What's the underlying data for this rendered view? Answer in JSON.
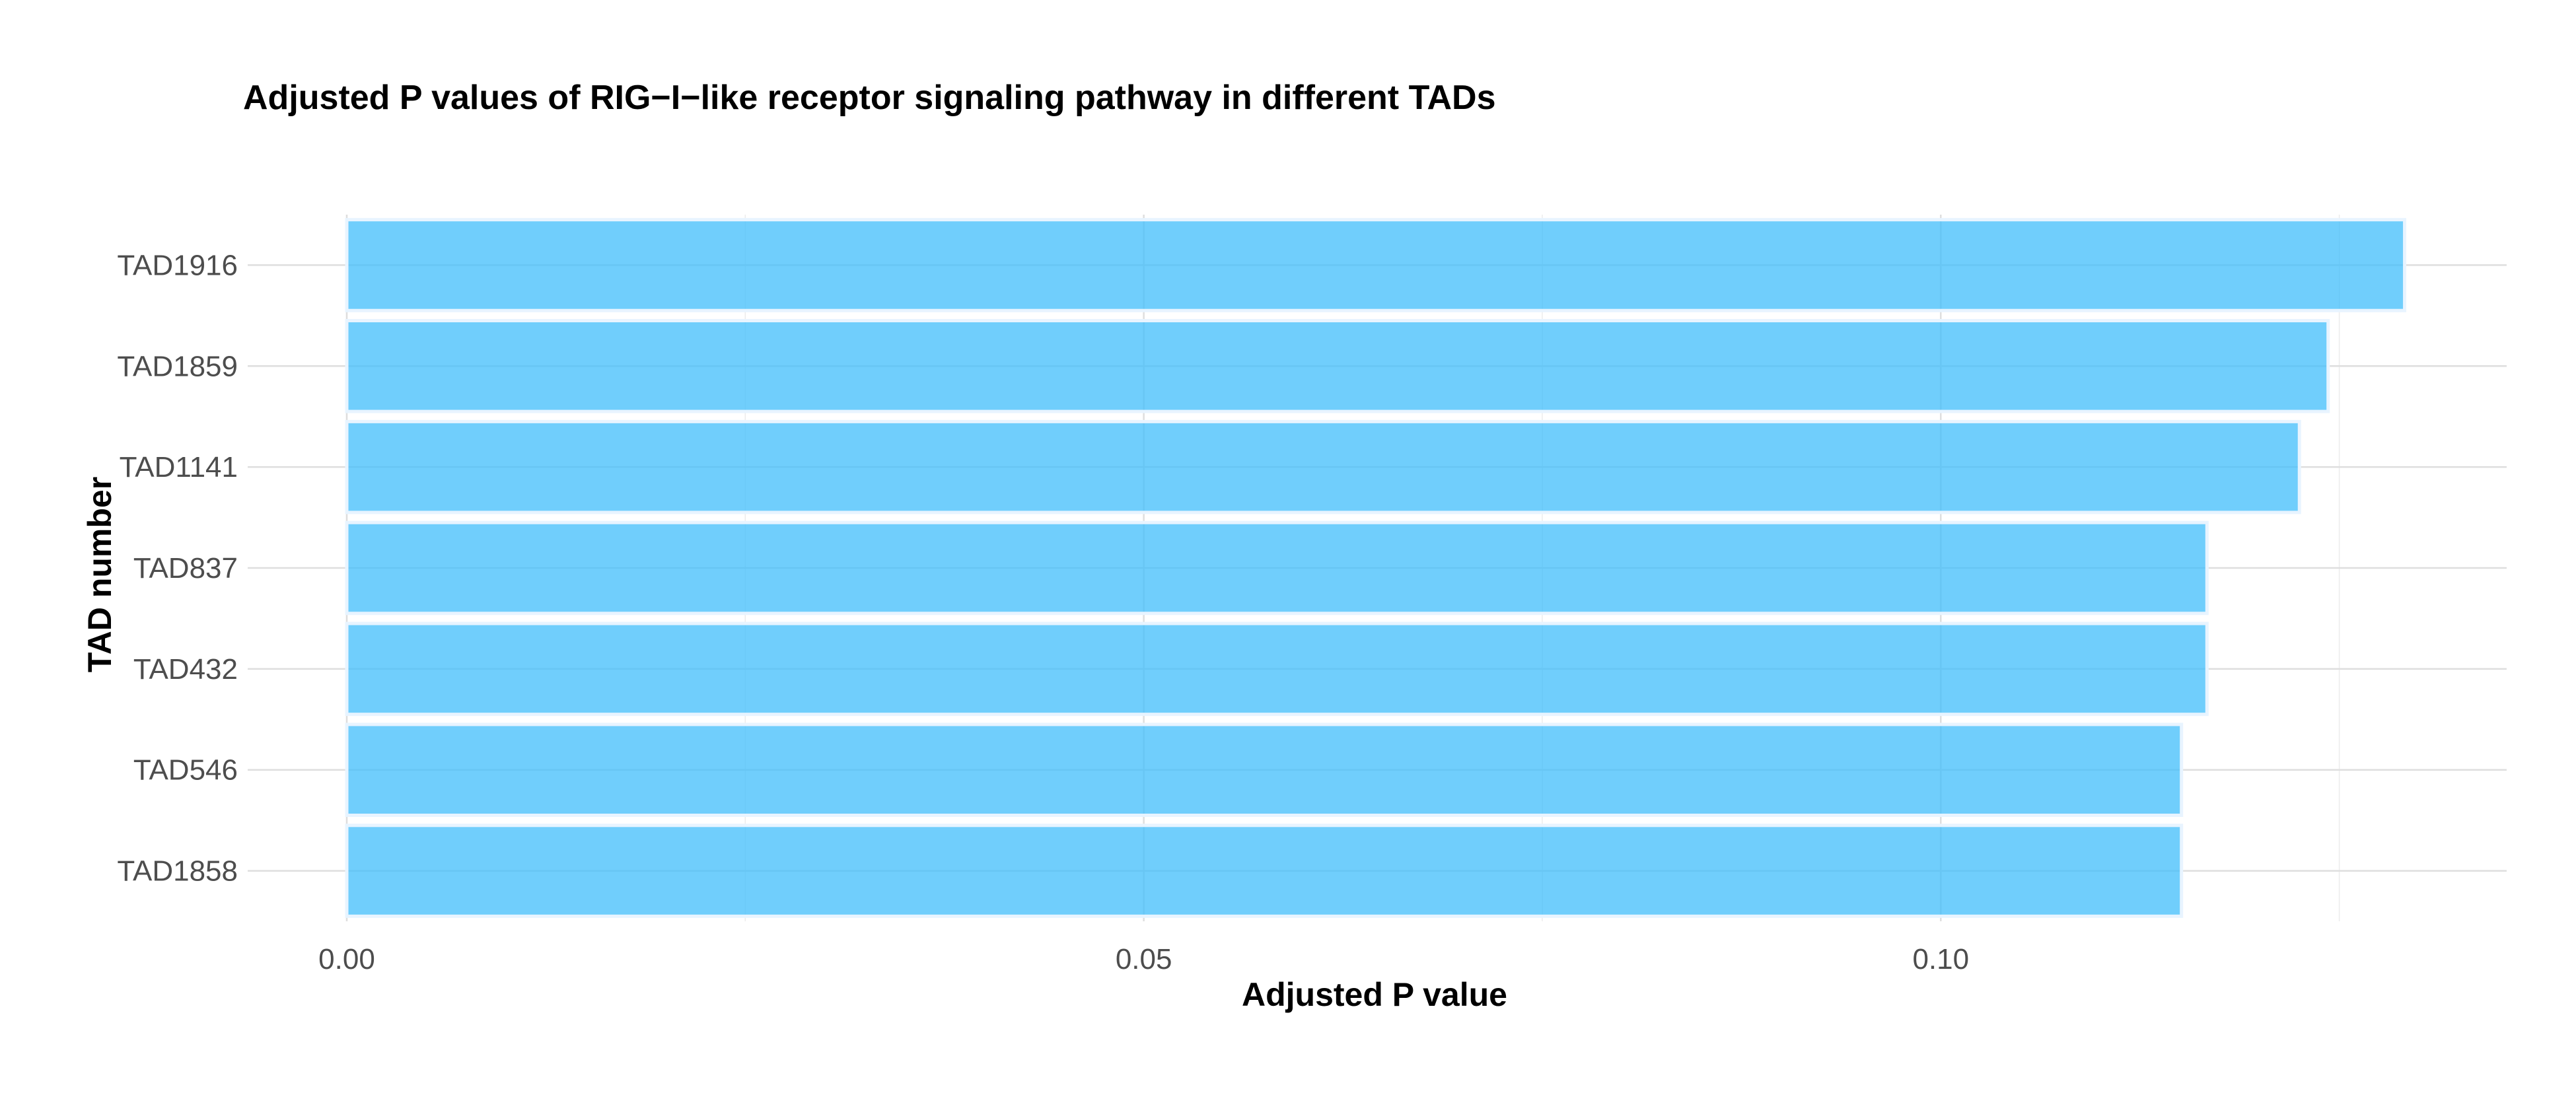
{
  "chart_data": {
    "type": "bar",
    "orientation": "horizontal",
    "title": "Adjusted P values of RIG−I−like receptor signaling pathway in different TADs",
    "xlabel": "Adjusted P value",
    "ylabel": "TAD number",
    "categories": [
      "TAD1916",
      "TAD1859",
      "TAD1141",
      "TAD837",
      "TAD432",
      "TAD546",
      "TAD1858"
    ],
    "values": [
      0.1291,
      0.1243,
      0.1225,
      0.1167,
      0.1167,
      0.1151,
      0.1151
    ],
    "xlim": [
      0,
      0.1355
    ],
    "x_ticks": [
      0.0,
      0.05,
      0.1
    ],
    "x_tick_labels": [
      "0.00",
      "0.05",
      "0.10"
    ],
    "grid": true,
    "legend": "none",
    "colors": {
      "bar": "#40bdfb",
      "grid": "#dedede"
    }
  }
}
